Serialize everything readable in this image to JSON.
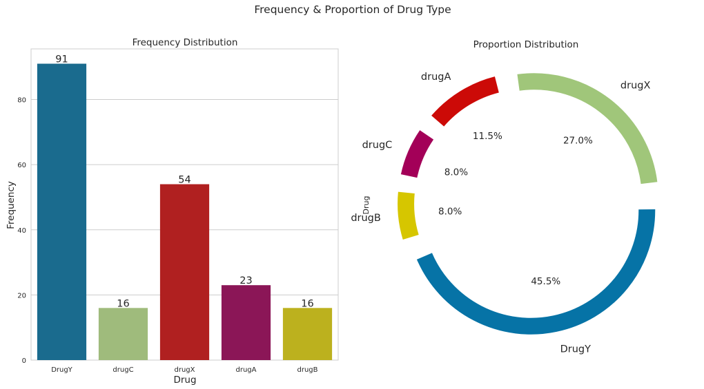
{
  "figure": {
    "title": "Frequency & Proportion of Drug Type"
  },
  "chart_data": [
    {
      "type": "bar",
      "title": "Frequency Distribution",
      "xlabel": "Drug",
      "ylabel": "Frequency",
      "categories": [
        "DrugY",
        "drugC",
        "drugX",
        "drugA",
        "drugB"
      ],
      "values": [
        91,
        16,
        54,
        23,
        16
      ],
      "data_labels": [
        "91",
        "16",
        "54",
        "23",
        "16"
      ],
      "colors": [
        "#1a6b8e",
        "#9fbb7c",
        "#b02020",
        "#8b1657",
        "#bcb11e"
      ],
      "ylim": [
        0,
        95.55
      ],
      "yticks": [
        0,
        20,
        40,
        60,
        80
      ],
      "ytick_labels": [
        "0",
        "20",
        "40",
        "60",
        "80"
      ],
      "grid": true,
      "legend": "none"
    },
    {
      "type": "pie",
      "title": "Proportion Distribution",
      "ylabel": "Drug",
      "style": "donut",
      "categories": [
        "DrugY",
        "drugX",
        "drugA",
        "drugC",
        "drugB"
      ],
      "values": [
        91,
        54,
        23,
        16,
        16
      ],
      "percent_labels": [
        "45.5%",
        "27.0%",
        "11.5%",
        "8.0%",
        "8.0%"
      ],
      "colors": [
        "#0673a6",
        "#a0c67a",
        "#cc0a07",
        "#a30058",
        "#d6c600"
      ],
      "legend": "none"
    }
  ]
}
